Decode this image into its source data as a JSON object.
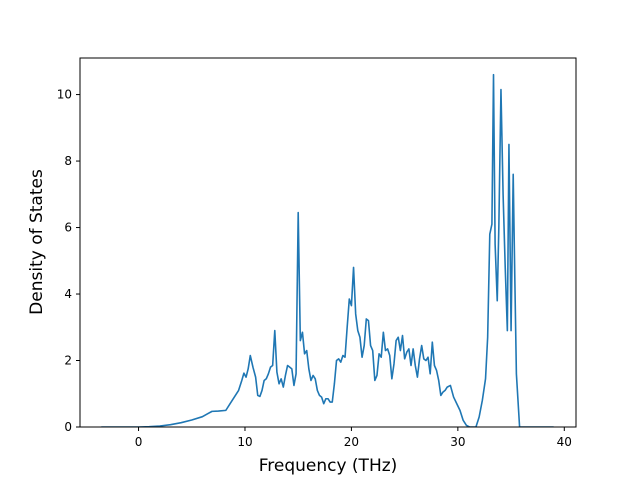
{
  "chart_data": {
    "type": "line",
    "title": "",
    "xlabel": "Frequency (THz)",
    "ylabel": "Density of States",
    "xlim": [
      -5.5,
      41.1
    ],
    "ylim": [
      0,
      11.1
    ],
    "xticks": [
      0,
      10,
      20,
      30,
      40
    ],
    "yticks": [
      0,
      2,
      4,
      6,
      8,
      10
    ],
    "grid": false,
    "legend": "none",
    "series": [
      {
        "color": "#1f77b4",
        "points": [
          [
            -3.5,
            0.0
          ],
          [
            -2.0,
            0.0
          ],
          [
            0.0,
            0.0
          ],
          [
            1.0,
            0.01
          ],
          [
            2.0,
            0.03
          ],
          [
            3.0,
            0.07
          ],
          [
            4.0,
            0.13
          ],
          [
            5.0,
            0.21
          ],
          [
            6.0,
            0.31
          ],
          [
            6.5,
            0.4
          ],
          [
            6.9,
            0.47
          ],
          [
            7.5,
            0.48
          ],
          [
            7.5,
            0.48
          ],
          [
            8.2,
            0.5
          ],
          [
            8.6,
            0.7
          ],
          [
            9.0,
            0.9
          ],
          [
            9.4,
            1.1
          ],
          [
            9.7,
            1.4
          ],
          [
            9.9,
            1.62
          ],
          [
            10.1,
            1.5
          ],
          [
            10.3,
            1.75
          ],
          [
            10.5,
            2.15
          ],
          [
            10.75,
            1.8
          ],
          [
            11.0,
            1.5
          ],
          [
            11.2,
            0.95
          ],
          [
            11.4,
            0.92
          ],
          [
            11.6,
            1.1
          ],
          [
            11.8,
            1.4
          ],
          [
            12.0,
            1.45
          ],
          [
            12.2,
            1.6
          ],
          [
            12.4,
            1.8
          ],
          [
            12.6,
            1.85
          ],
          [
            12.8,
            2.9
          ],
          [
            13.0,
            1.65
          ],
          [
            13.2,
            1.3
          ],
          [
            13.4,
            1.45
          ],
          [
            13.6,
            1.2
          ],
          [
            13.8,
            1.55
          ],
          [
            14.0,
            1.85
          ],
          [
            14.2,
            1.8
          ],
          [
            14.4,
            1.75
          ],
          [
            14.6,
            1.25
          ],
          [
            14.8,
            1.6
          ],
          [
            15.0,
            6.45
          ],
          [
            15.2,
            2.6
          ],
          [
            15.4,
            2.85
          ],
          [
            15.6,
            2.2
          ],
          [
            15.8,
            2.3
          ],
          [
            16.0,
            1.75
          ],
          [
            16.2,
            1.4
          ],
          [
            16.4,
            1.55
          ],
          [
            16.6,
            1.45
          ],
          [
            16.8,
            1.1
          ],
          [
            17.0,
            0.95
          ],
          [
            17.2,
            0.9
          ],
          [
            17.4,
            0.7
          ],
          [
            17.6,
            0.85
          ],
          [
            17.8,
            0.85
          ],
          [
            18.0,
            0.75
          ],
          [
            18.2,
            0.75
          ],
          [
            18.4,
            1.3
          ],
          [
            18.6,
            2.0
          ],
          [
            18.8,
            2.05
          ],
          [
            19.0,
            1.95
          ],
          [
            19.2,
            2.15
          ],
          [
            19.4,
            2.1
          ],
          [
            19.6,
            3.0
          ],
          [
            19.8,
            3.85
          ],
          [
            20.0,
            3.65
          ],
          [
            20.2,
            4.8
          ],
          [
            20.4,
            3.4
          ],
          [
            20.6,
            2.9
          ],
          [
            20.8,
            2.7
          ],
          [
            21.0,
            2.1
          ],
          [
            21.2,
            2.45
          ],
          [
            21.4,
            3.25
          ],
          [
            21.6,
            3.2
          ],
          [
            21.8,
            2.45
          ],
          [
            22.0,
            2.3
          ],
          [
            22.2,
            1.4
          ],
          [
            22.4,
            1.55
          ],
          [
            22.6,
            2.2
          ],
          [
            22.8,
            2.1
          ],
          [
            23.0,
            2.85
          ],
          [
            23.2,
            2.3
          ],
          [
            23.4,
            2.35
          ],
          [
            23.6,
            2.15
          ],
          [
            23.8,
            1.45
          ],
          [
            24.0,
            1.9
          ],
          [
            24.2,
            2.6
          ],
          [
            24.4,
            2.7
          ],
          [
            24.6,
            2.3
          ],
          [
            24.8,
            2.75
          ],
          [
            25.0,
            2.05
          ],
          [
            25.2,
            2.25
          ],
          [
            25.4,
            2.35
          ],
          [
            25.6,
            1.85
          ],
          [
            25.8,
            2.35
          ],
          [
            26.0,
            1.85
          ],
          [
            26.2,
            1.5
          ],
          [
            26.4,
            2.05
          ],
          [
            26.6,
            2.45
          ],
          [
            26.8,
            2.05
          ],
          [
            27.0,
            2.0
          ],
          [
            27.2,
            2.1
          ],
          [
            27.4,
            1.6
          ],
          [
            27.6,
            2.55
          ],
          [
            27.8,
            1.85
          ],
          [
            28.0,
            1.7
          ],
          [
            28.2,
            1.4
          ],
          [
            28.4,
            0.95
          ],
          [
            28.6,
            1.05
          ],
          [
            28.8,
            1.1
          ],
          [
            29.0,
            1.2
          ],
          [
            29.3,
            1.25
          ],
          [
            29.6,
            0.9
          ],
          [
            29.9,
            0.7
          ],
          [
            30.2,
            0.5
          ],
          [
            30.5,
            0.2
          ],
          [
            30.8,
            0.05
          ],
          [
            31.1,
            0.0
          ],
          [
            31.7,
            0.0
          ],
          [
            32.0,
            0.3
          ],
          [
            32.3,
            0.8
          ],
          [
            32.6,
            1.45
          ],
          [
            32.8,
            2.7
          ],
          [
            33.0,
            5.8
          ],
          [
            33.2,
            6.1
          ],
          [
            33.35,
            10.6
          ],
          [
            33.5,
            5.5
          ],
          [
            33.7,
            3.8
          ],
          [
            33.85,
            6.0
          ],
          [
            34.05,
            10.15
          ],
          [
            34.25,
            7.0
          ],
          [
            34.45,
            4.8
          ],
          [
            34.65,
            2.9
          ],
          [
            34.8,
            8.5
          ],
          [
            35.0,
            2.9
          ],
          [
            35.2,
            7.6
          ],
          [
            35.35,
            4.5
          ],
          [
            35.5,
            1.6
          ],
          [
            35.8,
            0.0
          ],
          [
            37.0,
            0.0
          ],
          [
            39.0,
            0.0
          ]
        ]
      }
    ]
  }
}
